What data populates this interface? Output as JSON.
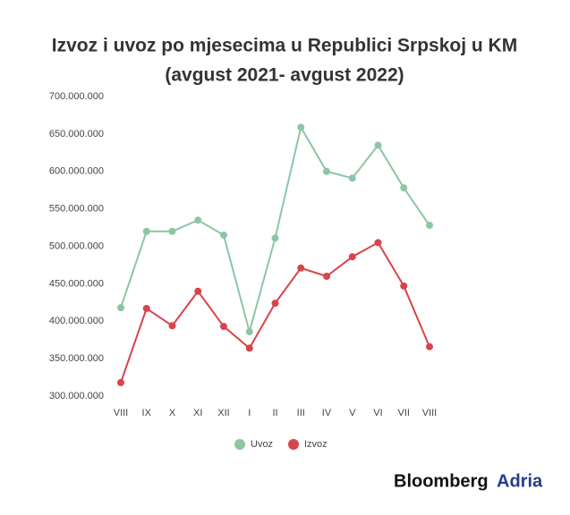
{
  "chart_data": {
    "type": "line",
    "title": [
      "Izvoz i uvoz po mjesecima u Republici Srpskoj u KM",
      "(avgust 2021- avgust 2022)"
    ],
    "categories": [
      "VIII",
      "IX",
      "X",
      "XI",
      "XII",
      "I",
      "II",
      "III",
      "IV",
      "V",
      "VI",
      "VII",
      "VIII"
    ],
    "series": [
      {
        "name": "Uvoz",
        "color": "#8cc6a4",
        "values": [
          418000000,
          520000000,
          520000000,
          535000000,
          515000000,
          386000000,
          511000000,
          659000000,
          600000000,
          591000000,
          635000000,
          578000000,
          528000000
        ]
      },
      {
        "name": "Izvoz",
        "color": "#d9434b",
        "values": [
          318000000,
          417000000,
          394000000,
          440000000,
          393000000,
          364000000,
          424000000,
          471000000,
          460000000,
          486000000,
          505000000,
          447000000,
          366000000
        ]
      }
    ],
    "ylim": [
      300000000,
      700000000
    ],
    "yticks": [
      {
        "value": 300000000,
        "label": "300.000.000"
      },
      {
        "value": 350000000,
        "label": "350.000.000"
      },
      {
        "value": 400000000,
        "label": "400.000.000"
      },
      {
        "value": 450000000,
        "label": "450.000.000"
      },
      {
        "value": 500000000,
        "label": "500.000.000"
      },
      {
        "value": 550000000,
        "label": "550.000.000"
      },
      {
        "value": 600000000,
        "label": "600.000.000"
      },
      {
        "value": 650000000,
        "label": "650.000.000"
      },
      {
        "value": 700000000,
        "label": "700.000.000"
      }
    ],
    "grid": false,
    "legend": "bottom",
    "logo": [
      "Bloomberg",
      "Adria"
    ]
  }
}
